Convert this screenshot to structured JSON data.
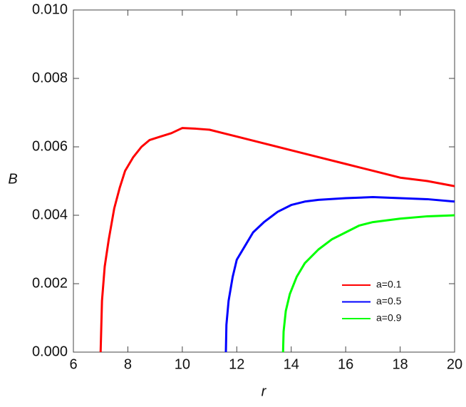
{
  "chart_data": {
    "type": "line",
    "xlabel": "r",
    "ylabel": "B",
    "xlim": [
      6,
      20
    ],
    "ylim": [
      0,
      0.01
    ],
    "xticks": [
      6,
      8,
      10,
      12,
      14,
      16,
      18,
      20
    ],
    "yticks": [
      {
        "value": 0,
        "label": "0.000"
      },
      {
        "value": 0.002,
        "label": "0.002"
      },
      {
        "value": 0.004,
        "label": "0.004"
      },
      {
        "value": 0.006,
        "label": "0.006"
      },
      {
        "value": 0.008,
        "label": "0.008"
      },
      {
        "value": 0.01,
        "label": "0.010"
      }
    ],
    "grid": false,
    "legend": "lower right",
    "series": [
      {
        "name": "a=0.1",
        "color": "#ff0000",
        "x": [
          7.0,
          7.05,
          7.15,
          7.3,
          7.5,
          7.7,
          7.9,
          8.2,
          8.5,
          8.8,
          9.2,
          9.6,
          10.0,
          10.5,
          11,
          11.5,
          12,
          13,
          14,
          15,
          16,
          17,
          18,
          19,
          20
        ],
        "values": [
          0,
          0.0015,
          0.0025,
          0.0033,
          0.0042,
          0.0048,
          0.0053,
          0.0057,
          0.006,
          0.0062,
          0.0063,
          0.0064,
          0.00655,
          0.00653,
          0.0065,
          0.0064,
          0.0063,
          0.0061,
          0.0059,
          0.0057,
          0.0055,
          0.0053,
          0.0051,
          0.005,
          0.00485
        ]
      },
      {
        "name": "a=0.5",
        "color": "#0000ff",
        "x": [
          11.6,
          11.62,
          11.7,
          11.85,
          12.0,
          12.3,
          12.6,
          13,
          13.5,
          14,
          14.5,
          15,
          16,
          17,
          18,
          19,
          20
        ],
        "values": [
          0,
          0.0008,
          0.0015,
          0.0022,
          0.0027,
          0.0031,
          0.0035,
          0.0038,
          0.0041,
          0.0043,
          0.0044,
          0.00445,
          0.0045,
          0.00453,
          0.0045,
          0.00447,
          0.0044
        ]
      },
      {
        "name": "a=0.9",
        "color": "#00ff00",
        "x": [
          13.7,
          13.72,
          13.8,
          13.95,
          14.2,
          14.5,
          15,
          15.5,
          16,
          16.5,
          17,
          18,
          19,
          20
        ],
        "values": [
          0,
          0.0006,
          0.0012,
          0.0017,
          0.0022,
          0.0026,
          0.003,
          0.0033,
          0.0035,
          0.0037,
          0.0038,
          0.0039,
          0.00397,
          0.004
        ]
      }
    ]
  }
}
